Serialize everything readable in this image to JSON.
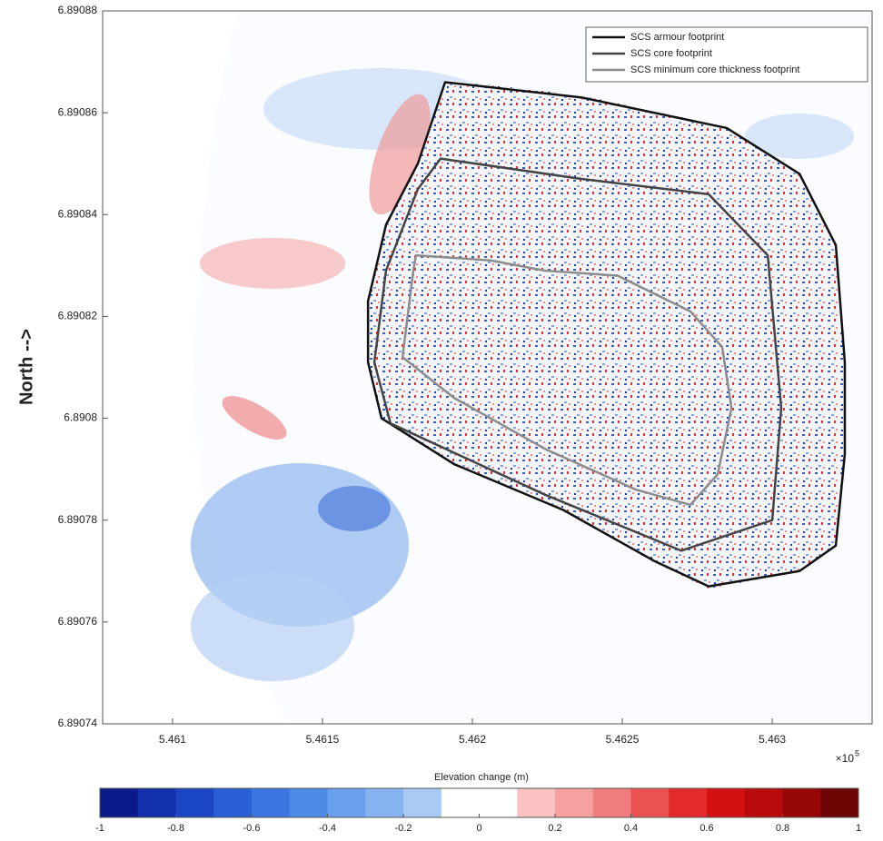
{
  "chart_data": {
    "type": "map",
    "ylabel": "North -->",
    "xlim": [
      5.460767,
      5.463333
    ],
    "ylim": [
      6.89074,
      6.89088
    ],
    "xticks": [
      5.461,
      5.4615,
      5.462,
      5.4625,
      5.463
    ],
    "yticks": [
      6.89074,
      6.89076,
      6.89078,
      6.8908,
      6.89082,
      6.89084,
      6.89086,
      6.89088
    ],
    "x_exponent": {
      "base": "×10",
      "power": "5"
    },
    "legend": "upper right",
    "series": [
      {
        "name": "SCS armour footprint",
        "color": "#111111",
        "x": [
          5.461909,
          5.462364,
          5.462848,
          5.463091,
          5.463212,
          5.463242,
          5.463242,
          5.463212,
          5.463091,
          5.462788,
          5.462606,
          5.462303,
          5.461939,
          5.461697,
          5.461652,
          5.461652,
          5.461712,
          5.461818
        ],
        "y": [
          6.890866,
          6.890863,
          6.890857,
          6.890848,
          6.890834,
          6.890811,
          6.890793,
          6.890775,
          6.89077,
          6.890767,
          6.890772,
          6.890782,
          6.890791,
          6.8908,
          6.890811,
          6.890823,
          6.890838,
          6.89085
        ]
      },
      {
        "name": "SCS core footprint",
        "color": "#444444",
        "x": [
          5.461894,
          5.462364,
          5.462788,
          5.462985,
          5.46303,
          5.463,
          5.462697,
          5.462242,
          5.461727,
          5.461673,
          5.461712,
          5.461818
        ],
        "y": [
          6.890851,
          6.890847,
          6.890844,
          6.890832,
          6.890802,
          6.89078,
          6.890774,
          6.890785,
          6.890799,
          6.890811,
          6.890829,
          6.890845
        ]
      },
      {
        "name": "SCS minimum core thickness footprint",
        "color": "#8c8c8c",
        "x": [
          5.461812,
          5.462061,
          5.462242,
          5.462485,
          5.462727,
          5.462833,
          5.462864,
          5.462818,
          5.462727,
          5.462545,
          5.462242,
          5.461939,
          5.461767,
          5.461803
        ],
        "y": [
          6.890832,
          6.890831,
          6.890829,
          6.890828,
          6.890821,
          6.890814,
          6.890802,
          6.890789,
          6.890783,
          6.890786,
          6.890794,
          6.890804,
          6.890812,
          6.890829
        ]
      }
    ],
    "colorbar": {
      "label": "Elevation change (m)",
      "lim": [
        -1,
        1
      ],
      "ticks": [
        -1,
        -0.8,
        -0.6,
        -0.4,
        -0.2,
        0,
        0.2,
        0.4,
        0.6,
        0.8,
        1
      ],
      "colors": [
        "#0b1a8a",
        "#1230ac",
        "#1a46c4",
        "#2a5fd6",
        "#3b76e0",
        "#4c8ae6",
        "#68a0ec",
        "#86b4f0",
        "#a8caf5",
        "#ffffff",
        "#ffffff",
        "#fbc2c2",
        "#f6a0a0",
        "#f07c7c",
        "#ea5252",
        "#e42a2a",
        "#d41010",
        "#b80a0a",
        "#960808",
        "#6e0606"
      ]
    }
  }
}
